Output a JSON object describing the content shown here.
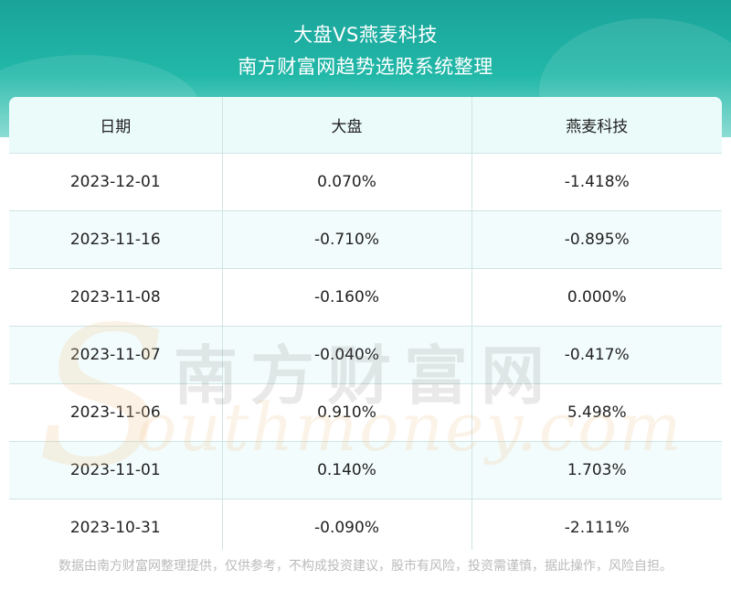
{
  "header": {
    "title": "大盘VS燕麦科技",
    "subtitle": "南方财富网趋势选股系统整理"
  },
  "table": {
    "columns": [
      "日期",
      "大盘",
      "燕麦科技"
    ],
    "rows": [
      [
        "2023-12-01",
        "0.070%",
        "-1.418%"
      ],
      [
        "2023-11-16",
        "-0.710%",
        "-0.895%"
      ],
      [
        "2023-11-08",
        "-0.160%",
        "0.000%"
      ],
      [
        "2023-11-07",
        "-0.040%",
        "-0.417%"
      ],
      [
        "2023-11-06",
        "0.910%",
        "5.498%"
      ],
      [
        "2023-11-01",
        "0.140%",
        "1.703%"
      ],
      [
        "2023-10-31",
        "-0.090%",
        "-2.111%"
      ]
    ]
  },
  "watermark": {
    "cn": "南方财富网",
    "en": "outhmoney.com",
    "s": "S"
  },
  "footer": {
    "disclaimer": "数据由南方财富网整理提供，仅供参考，不构成投资建议，股市有风险，投资需谨慎，据此操作，风险自担。"
  },
  "colors": {
    "header_teal": "#1aa39a",
    "header_bg_light": "#ebfbfa",
    "row_alt": "#f3fcfc",
    "grid": "#cfe4e4"
  }
}
